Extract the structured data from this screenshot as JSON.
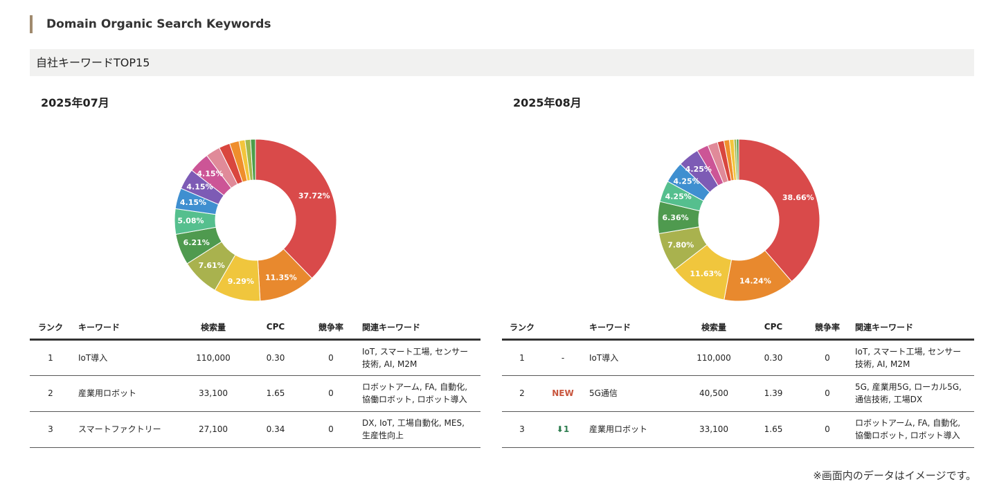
{
  "section_title": "Domain Organic Search Keywords",
  "subhead": "自社キーワードTOP15",
  "footnote": "※画面内のデータはイメージです。",
  "table_headers": {
    "rank": "ランク",
    "change": "",
    "keyword": "キーワード",
    "volume": "検索量",
    "cpc": "CPC",
    "competition": "競争率",
    "related": "関連キーワード"
  },
  "panels": [
    {
      "month": "2025年07月",
      "rows": [
        {
          "rank": "1",
          "keyword": "IoT導入",
          "volume": "110,000",
          "cpc": "0.30",
          "competition": "0",
          "related": "IoT, スマート工場, センサー技術, AI, M2M"
        },
        {
          "rank": "2",
          "keyword": "産業用ロボット",
          "volume": "33,100",
          "cpc": "1.65",
          "competition": "0",
          "related": "ロボットアーム, FA, 自動化, 協働ロボット, ロボット導入"
        },
        {
          "rank": "3",
          "keyword": "スマートファクトリー",
          "volume": "27,100",
          "cpc": "0.34",
          "competition": "0",
          "related": "DX, IoT, 工場自動化, MES, 生産性向上"
        }
      ]
    },
    {
      "month": "2025年08月",
      "rows": [
        {
          "rank": "1",
          "change": "-",
          "keyword": "IoT導入",
          "volume": "110,000",
          "cpc": "0.30",
          "competition": "0",
          "related": "IoT, スマート工場, センサー技術, AI, M2M"
        },
        {
          "rank": "2",
          "change": "NEW",
          "keyword": "5G通信",
          "volume": "40,500",
          "cpc": "1.39",
          "competition": "0",
          "related": "5G, 産業用5G, ローカル5G, 通信技術, 工場DX"
        },
        {
          "rank": "3",
          "change": "⬇1",
          "keyword": "産業用ロボット",
          "volume": "33,100",
          "cpc": "1.65",
          "competition": "0",
          "related": "ロボットアーム, FA, 自動化, 協働ロボット, ロボット導入"
        }
      ]
    }
  ],
  "chart_data": [
    {
      "type": "pie",
      "title": "2025年07月",
      "colors": [
        "#d94a4a",
        "#e8892e",
        "#f0c63d",
        "#a9b24e",
        "#4f9a4f",
        "#55bf8e",
        "#3f8fd0",
        "#7d5bb5",
        "#cc5596",
        "#e08a99",
        "#d9463e",
        "#ef8e2c",
        "#f3c53c",
        "#a3b84d",
        "#4c9d4a"
      ],
      "values": [
        37.72,
        11.35,
        9.29,
        7.61,
        6.21,
        5.08,
        4.15,
        4.15,
        4.15,
        2.9,
        2.2,
        1.9,
        1.2,
        1.1,
        0.98
      ],
      "labels": [
        "37.72%",
        "11.35%",
        "9.29%",
        "7.61%",
        "6.21%",
        "5.08%",
        "4.15%",
        "4.15%",
        "4.15%",
        "",
        "",
        "",
        "",
        "",
        ""
      ]
    },
    {
      "type": "pie",
      "title": "2025年08月",
      "colors": [
        "#d94a4a",
        "#e8892e",
        "#f0c63d",
        "#a9b24e",
        "#4f9a4f",
        "#55bf8e",
        "#3f8fd0",
        "#7d5bb5",
        "#cc5596",
        "#e08a99",
        "#d9463e",
        "#ef8e2c",
        "#f3c53c",
        "#a3b84d",
        "#4c9d4a"
      ],
      "values": [
        38.66,
        14.24,
        11.63,
        7.8,
        6.36,
        4.25,
        4.25,
        4.25,
        2.3,
        2.0,
        1.3,
        1.1,
        0.9,
        0.5,
        0.45
      ],
      "labels": [
        "38.66%",
        "14.24%",
        "11.63%",
        "7.80%",
        "6.36%",
        "4.25%",
        "4.25%",
        "4.25%",
        "",
        "",
        "",
        "",
        "",
        "",
        ""
      ]
    }
  ]
}
